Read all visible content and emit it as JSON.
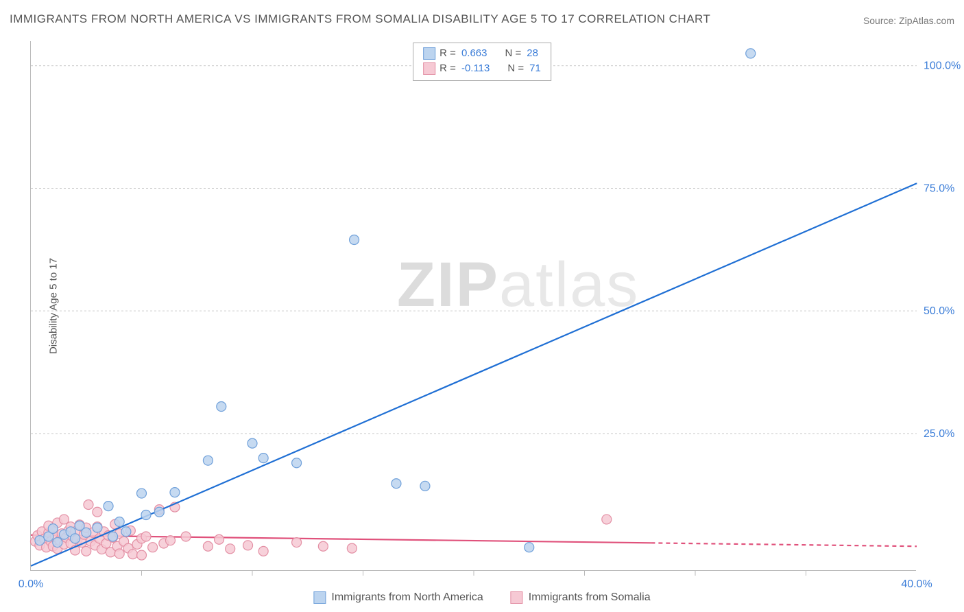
{
  "title": "IMMIGRANTS FROM NORTH AMERICA VS IMMIGRANTS FROM SOMALIA DISABILITY AGE 5 TO 17 CORRELATION CHART",
  "source": "Source: ZipAtlas.com",
  "ylabel": "Disability Age 5 to 17",
  "watermark_a": "ZIP",
  "watermark_b": "atlas",
  "chart": {
    "type": "scatter",
    "xlim": [
      0,
      40
    ],
    "ylim": [
      -3,
      105
    ],
    "y_ticks": [
      {
        "v": 25,
        "l": "25.0%"
      },
      {
        "v": 50,
        "l": "50.0%"
      },
      {
        "v": 75,
        "l": "75.0%"
      },
      {
        "v": 100,
        "l": "100.0%"
      }
    ],
    "x_ticks_major": [
      {
        "v": 0,
        "l": "0.0%"
      },
      {
        "v": 40,
        "l": "40.0%"
      }
    ],
    "x_ticks_minor": [
      5,
      10,
      15,
      20,
      25,
      30,
      35
    ],
    "background_color": "#ffffff",
    "grid_color": "#cccccc",
    "axis_color": "#bbbbbb",
    "tick_label_color": "#3b7dd8",
    "marker_radius": 7,
    "marker_stroke_width": 1.2,
    "series": [
      {
        "name": "Immigrants from North America",
        "fill": "#bcd4ef",
        "stroke": "#6fa0da",
        "line_color": "#1f6fd4",
        "line_width": 2.2,
        "line": {
          "x1": 0,
          "y1": -2,
          "x2": 40,
          "y2": 76,
          "dash_from_x": 40
        },
        "R_label": "R =",
        "R_value": "0.663",
        "N_label": "N =",
        "N_value": "28",
        "points": [
          [
            0.4,
            3.2
          ],
          [
            0.8,
            4.0
          ],
          [
            1.0,
            5.6
          ],
          [
            1.2,
            2.8
          ],
          [
            1.5,
            4.4
          ],
          [
            1.8,
            5.0
          ],
          [
            2.0,
            3.6
          ],
          [
            2.2,
            6.2
          ],
          [
            2.5,
            4.8
          ],
          [
            3.0,
            5.8
          ],
          [
            3.5,
            10.2
          ],
          [
            3.7,
            4.0
          ],
          [
            4.0,
            7.0
          ],
          [
            4.3,
            5.0
          ],
          [
            5.0,
            12.8
          ],
          [
            5.2,
            8.4
          ],
          [
            5.8,
            9.0
          ],
          [
            6.5,
            13.0
          ],
          [
            8.0,
            19.5
          ],
          [
            8.6,
            30.5
          ],
          [
            10.0,
            23.0
          ],
          [
            10.5,
            20.0
          ],
          [
            12.0,
            19.0
          ],
          [
            14.6,
            64.5
          ],
          [
            16.5,
            14.8
          ],
          [
            17.8,
            14.3
          ],
          [
            22.5,
            1.8
          ],
          [
            32.5,
            102.5
          ]
        ]
      },
      {
        "name": "Immigrants from Somalia",
        "fill": "#f6c9d4",
        "stroke": "#e38fa4",
        "line_color": "#e0517b",
        "line_width": 2.2,
        "line": {
          "x1": 0,
          "y1": 4.3,
          "x2": 40,
          "y2": 2.0,
          "dash_from_x": 28
        },
        "R_label": "R =",
        "R_value": "-0.113",
        "N_label": "N =",
        "N_value": "71",
        "points": [
          [
            0.2,
            3.0
          ],
          [
            0.3,
            4.2
          ],
          [
            0.4,
            2.2
          ],
          [
            0.5,
            5.0
          ],
          [
            0.6,
            3.5
          ],
          [
            0.7,
            1.8
          ],
          [
            0.8,
            4.8
          ],
          [
            0.8,
            6.2
          ],
          [
            0.9,
            3.0
          ],
          [
            1.0,
            2.0
          ],
          [
            1.0,
            5.5
          ],
          [
            1.1,
            4.0
          ],
          [
            1.2,
            1.5
          ],
          [
            1.2,
            6.8
          ],
          [
            1.3,
            3.2
          ],
          [
            1.4,
            4.6
          ],
          [
            1.5,
            2.4
          ],
          [
            1.5,
            7.5
          ],
          [
            1.6,
            3.8
          ],
          [
            1.7,
            5.2
          ],
          [
            1.8,
            2.6
          ],
          [
            1.8,
            6.0
          ],
          [
            1.9,
            4.0
          ],
          [
            2.0,
            1.2
          ],
          [
            2.0,
            5.0
          ],
          [
            2.1,
            3.4
          ],
          [
            2.2,
            6.4
          ],
          [
            2.3,
            2.8
          ],
          [
            2.4,
            4.4
          ],
          [
            2.5,
            1.0
          ],
          [
            2.5,
            5.8
          ],
          [
            2.6,
            10.5
          ],
          [
            2.7,
            3.0
          ],
          [
            2.8,
            4.8
          ],
          [
            2.9,
            2.2
          ],
          [
            3.0,
            6.0
          ],
          [
            3.0,
            9.0
          ],
          [
            3.1,
            3.6
          ],
          [
            3.2,
            1.4
          ],
          [
            3.3,
            5.0
          ],
          [
            3.4,
            2.6
          ],
          [
            3.5,
            4.2
          ],
          [
            3.6,
            0.8
          ],
          [
            3.7,
            3.8
          ],
          [
            3.8,
            6.5
          ],
          [
            3.9,
            2.0
          ],
          [
            4.0,
            4.6
          ],
          [
            4.0,
            0.5
          ],
          [
            4.2,
            3.0
          ],
          [
            4.4,
            1.6
          ],
          [
            4.5,
            5.2
          ],
          [
            4.6,
            0.4
          ],
          [
            4.8,
            2.4
          ],
          [
            5.0,
            3.6
          ],
          [
            5.0,
            0.2
          ],
          [
            5.2,
            4.0
          ],
          [
            5.5,
            1.8
          ],
          [
            5.8,
            9.5
          ],
          [
            6.0,
            2.6
          ],
          [
            6.3,
            3.2
          ],
          [
            6.5,
            10.0
          ],
          [
            7.0,
            4.0
          ],
          [
            8.0,
            2.0
          ],
          [
            8.5,
            3.4
          ],
          [
            9.0,
            1.5
          ],
          [
            9.8,
            2.2
          ],
          [
            10.5,
            1.0
          ],
          [
            12.0,
            2.8
          ],
          [
            13.2,
            2.0
          ],
          [
            14.5,
            1.6
          ],
          [
            26.0,
            7.5
          ]
        ]
      }
    ]
  },
  "legend_bottom": [
    {
      "name": "Immigrants from North America",
      "fill": "#bcd4ef",
      "stroke": "#6fa0da"
    },
    {
      "name": "Immigrants from Somalia",
      "fill": "#f6c9d4",
      "stroke": "#e38fa4"
    }
  ]
}
